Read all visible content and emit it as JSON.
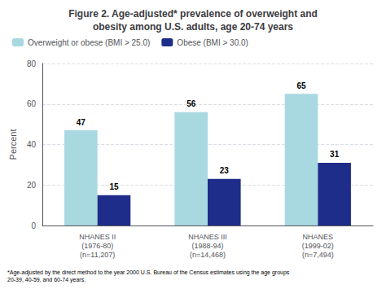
{
  "chart_data": {
    "type": "bar",
    "title": "Figure 2. Age-adjusted* prevalence of overweight and\nobesity among U.S. adults, age 20-74 years",
    "ylabel": "Percent",
    "categories": [
      "NHANES II\n(1976-80)\n(n=11,207)",
      "NHANES III\n(1988-94)\n(n=14,468)",
      "NHANES\n(1999-02)\n(n=7,494)"
    ],
    "series": [
      {
        "name": "Overweight or obese (BMI > 25.0)",
        "color": "#a8d8e0",
        "values": [
          47,
          56,
          65
        ]
      },
      {
        "name": "Obese (BMI > 30.0)",
        "color": "#1f2d8a",
        "values": [
          15,
          23,
          31
        ]
      }
    ],
    "ylim": [
      0,
      80
    ],
    "yticks": [
      0,
      20,
      40,
      60,
      80
    ],
    "grid": true,
    "legend": "upper left",
    "data_labels": true,
    "footnote": "*Age-adjusted by the direct method to the year 2000 U.S. Bureau of the Census estimates using the age groups\n20-39, 40-59, and 60-74 years."
  }
}
